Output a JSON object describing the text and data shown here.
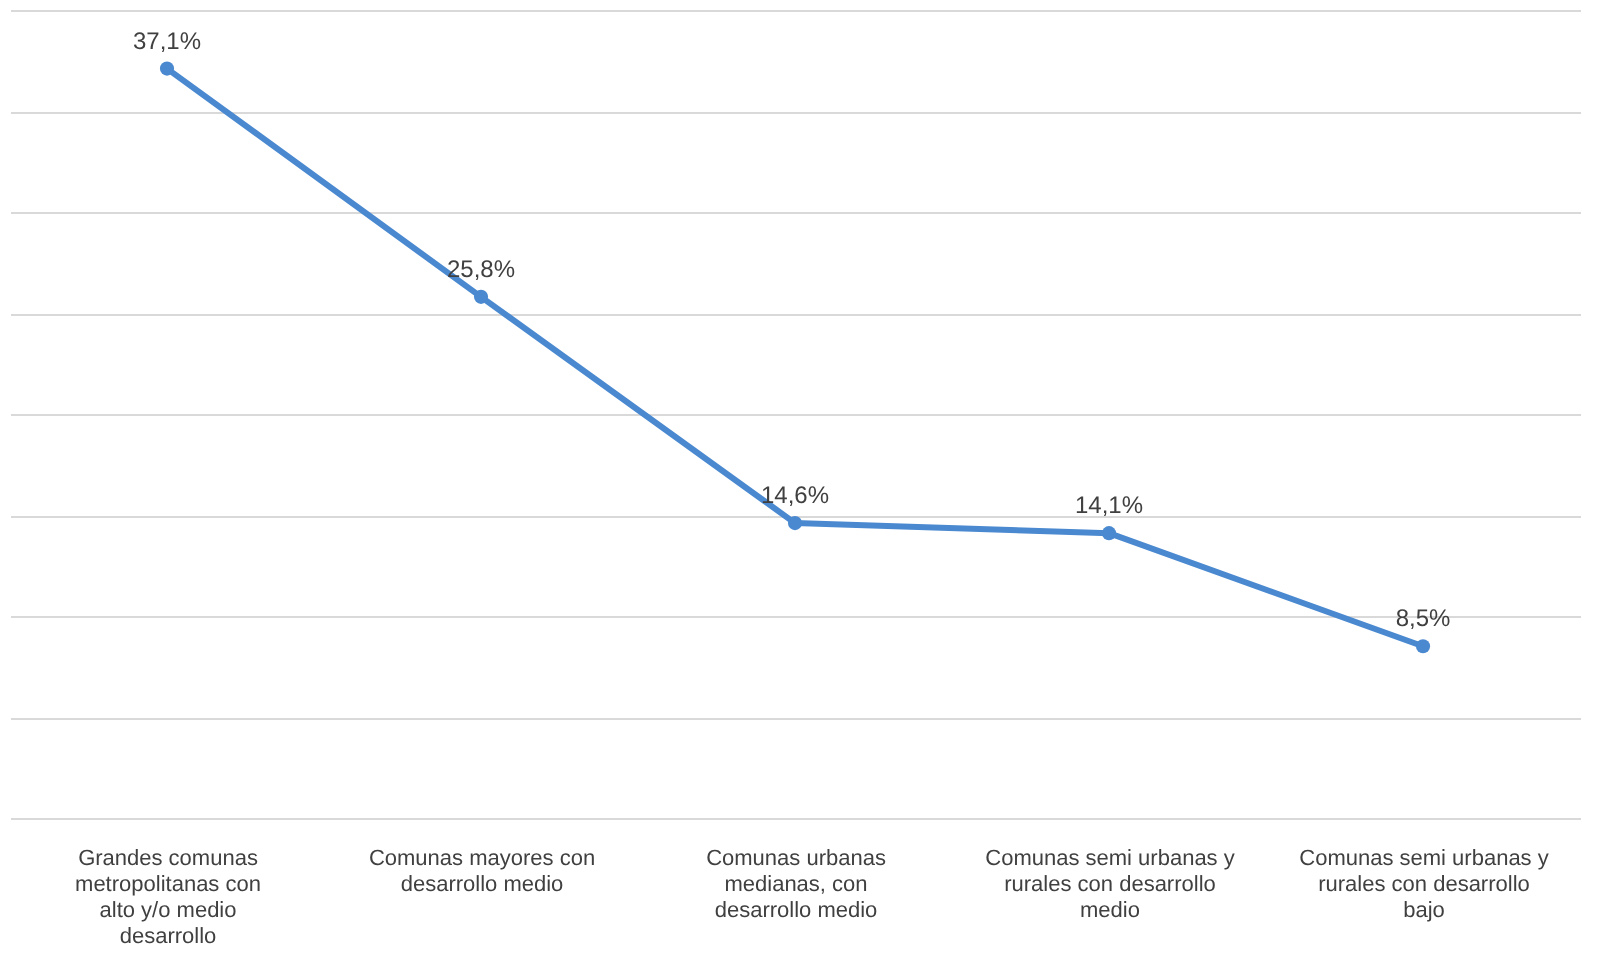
{
  "chart_data": {
    "type": "line",
    "categories": [
      "Grandes comunas metropolitanas con alto y/o medio desarrollo",
      "Comunas mayores con desarrollo medio",
      "Comunas urbanas medianas, con desarrollo medio",
      "Comunas semi urbanas y rurales con desarrollo medio",
      "Comunas semi urbanas y rurales con desarrollo bajo"
    ],
    "series": [
      {
        "color": "#4a89d0",
        "values": [
          37.1,
          25.8,
          14.6,
          14.1,
          8.5
        ],
        "value_labels": [
          "37,1%",
          "25,8%",
          "14,6%",
          "14,1%",
          "8,5%"
        ]
      }
    ],
    "ylim": [
      0,
      40
    ],
    "yticks": [
      0,
      5,
      10,
      15,
      20,
      25,
      30,
      35,
      40
    ],
    "grid": "y",
    "tick_labels": "x",
    "marker": "circle",
    "line_style": "solid"
  }
}
